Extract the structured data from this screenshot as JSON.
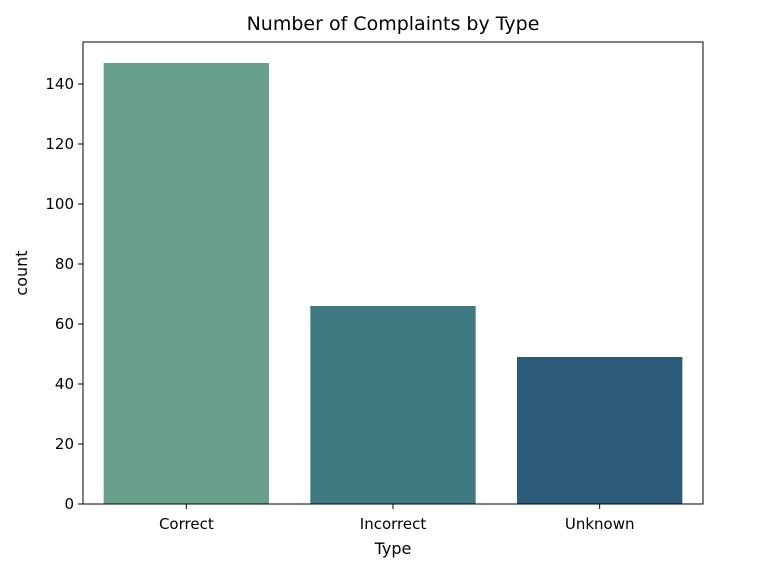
{
  "chart_data": {
    "type": "bar",
    "title": "Number of Complaints by Type",
    "xlabel": "Type",
    "ylabel": "count",
    "categories": [
      "Correct",
      "Incorrect",
      "Unknown"
    ],
    "values": [
      147,
      66,
      49
    ],
    "ylim": [
      0,
      154
    ],
    "yticks": [
      0,
      20,
      40,
      60,
      80,
      100,
      120,
      140
    ],
    "bar_colors": [
      "#69a08b",
      "#3f7a80",
      "#2c5b7a"
    ],
    "grid": false,
    "legend": "none"
  }
}
